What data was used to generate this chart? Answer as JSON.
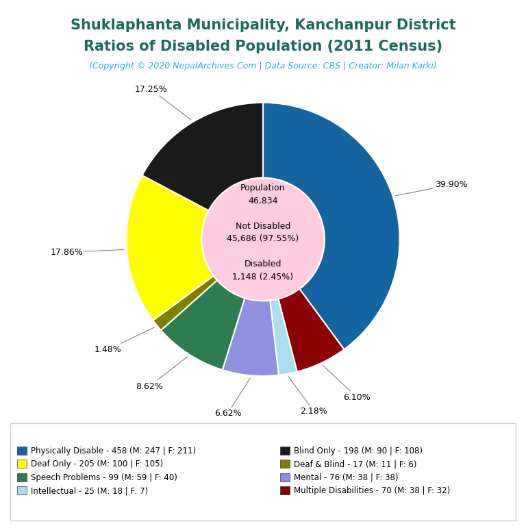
{
  "title_line1": "Shuklaphanta Municipality, Kanchanpur District",
  "title_line2": "Ratios of Disabled Population (2011 Census)",
  "subtitle": "(Copyright © 2020 NepalArchives.Com | Data Source: CBS | Creator: Milan Karki)",
  "title_color": "#1a6b5a",
  "subtitle_color": "#29abe2",
  "center_circle_color": "#ffcce0",
  "slices": [
    {
      "label": "Physically Disable - 458 (M: 247 | F: 211)",
      "value": 458,
      "color": "#1464a0",
      "pct": "39.90%"
    },
    {
      "label": "Multiple Disabilities - 70 (M: 38 | F: 32)",
      "value": 70,
      "color": "#8b0000",
      "pct": "6.10%"
    },
    {
      "label": "Intellectual - 25 (M: 18 | F: 7)",
      "value": 25,
      "color": "#aaddee",
      "pct": "2.18%"
    },
    {
      "label": "Mental - 76 (M: 38 | F: 38)",
      "value": 76,
      "color": "#9090e0",
      "pct": "6.62%"
    },
    {
      "label": "Speech Problems - 99 (M: 59 | F: 40)",
      "value": 99,
      "color": "#2e7d4f",
      "pct": "8.62%"
    },
    {
      "label": "Deaf & Blind - 17 (M: 11 | F: 6)",
      "value": 17,
      "color": "#808000",
      "pct": "1.48%"
    },
    {
      "label": "Deaf Only - 205 (M: 100 | F: 105)",
      "value": 205,
      "color": "#ffff00",
      "pct": "17.86%"
    },
    {
      "label": "Blind Only - 198 (M: 90 | F: 108)",
      "value": 198,
      "color": "#1a1a1a",
      "pct": "17.25%"
    }
  ],
  "legend_left": [
    {
      "label": "Physically Disable - 458 (M: 247 | F: 211)",
      "color": "#1464a0"
    },
    {
      "label": "Deaf Only - 205 (M: 100 | F: 105)",
      "color": "#ffff00"
    },
    {
      "label": "Speech Problems - 99 (M: 59 | F: 40)",
      "color": "#2e7d4f"
    },
    {
      "label": "Intellectual - 25 (M: 18 | F: 7)",
      "color": "#aaddee"
    }
  ],
  "legend_right": [
    {
      "label": "Blind Only - 198 (M: 90 | F: 108)",
      "color": "#1a1a1a"
    },
    {
      "label": "Deaf & Blind - 17 (M: 11 | F: 6)",
      "color": "#808000"
    },
    {
      "label": "Mental - 76 (M: 38 | F: 38)",
      "color": "#9090e0"
    },
    {
      "label": "Multiple Disabilities - 70 (M: 38 | F: 32)",
      "color": "#8b0000"
    }
  ],
  "background_color": "#ffffff"
}
